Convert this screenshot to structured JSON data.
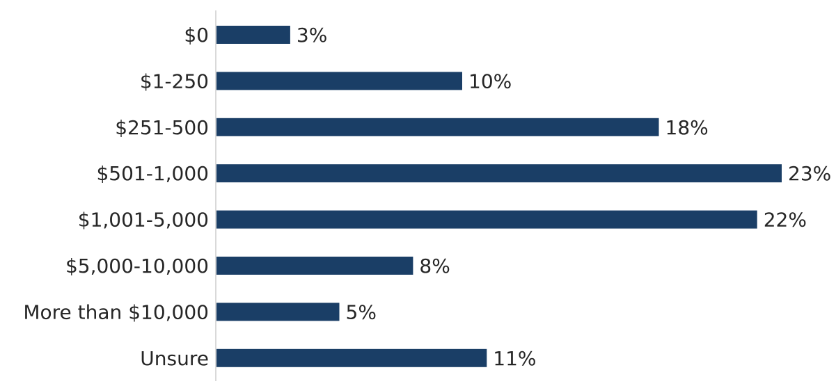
{
  "chart_data": {
    "type": "bar",
    "orientation": "horizontal",
    "categories": [
      "$0",
      "$1-250",
      "$251-500",
      "$501-1,000",
      "$1,001-5,000",
      "$5,000-10,000",
      "More than $10,000",
      "Unsure"
    ],
    "values": [
      3,
      10,
      18,
      23,
      22,
      8,
      5,
      11
    ],
    "value_labels": [
      "3%",
      "10%",
      "18%",
      "23%",
      "22%",
      "8%",
      "5%",
      "11%"
    ],
    "unit": "%",
    "title": "",
    "xlabel": "",
    "ylabel": "",
    "xlim": [
      0,
      23
    ],
    "grid": false,
    "legend": "none",
    "bar_color": "#1a3e66",
    "axis_color": "#d9d9d9"
  }
}
